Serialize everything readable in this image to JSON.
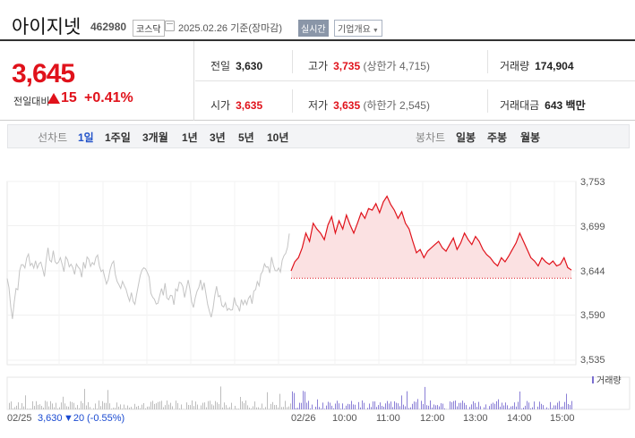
{
  "header": {
    "name": "아이지넷",
    "code": "462980",
    "market": "코스닥",
    "date": "2025.02.26 기준(장마감)",
    "realtime": "실시간",
    "corp_info": "기업개요"
  },
  "price": {
    "current": "3,645",
    "change_label": "전일대비",
    "change_value": "15",
    "change_pct": "+0.41%",
    "direction": "up"
  },
  "stats": {
    "prev_close_label": "전일",
    "prev_close": "3,630",
    "high_label": "고가",
    "high": "3,735",
    "upper_limit_label": "(상한가",
    "upper_limit": "4,715)",
    "volume_label": "거래량",
    "volume": "174,904",
    "open_label": "시가",
    "open": "3,635",
    "low_label": "저가",
    "low": "3,635",
    "lower_limit_label": "(하한가",
    "lower_limit": "2,545)",
    "trade_value_label": "거래대금",
    "trade_value": "643 백만"
  },
  "tabs": {
    "line_label": "선차트",
    "line": [
      "1일",
      "1주일",
      "3개월",
      "1년",
      "3년",
      "5년",
      "10년"
    ],
    "candle_label": "봉차트",
    "candle": [
      "일봉",
      "주봉",
      "월봉"
    ],
    "active": "1일"
  },
  "chart_data": {
    "type": "line",
    "y_ticks": [
      "3,753",
      "3,699",
      "3,644",
      "3,590",
      "3,535"
    ],
    "ylim": [
      3535,
      3753
    ],
    "x_ticks": [
      "02/26",
      "10:00",
      "11:00",
      "12:00",
      "13:00",
      "14:00",
      "15:00"
    ],
    "volume_label": "거래량",
    "prev_day_label": "02/25",
    "prev_day_close": "3,630",
    "prev_day_change": "▼20",
    "prev_day_pct": "(-0.55%)",
    "series": [
      {
        "values": [
          3644,
          3655,
          3660,
          3672,
          3690,
          3680,
          3702,
          3695,
          3690,
          3682,
          3700,
          3710,
          3690,
          3705,
          3695,
          3712,
          3700,
          3690,
          3702,
          3715,
          3708,
          3720,
          3718,
          3726,
          3715,
          3728,
          3735,
          3725,
          3718,
          3708,
          3716,
          3702,
          3695,
          3680,
          3666,
          3670,
          3660,
          3668,
          3672,
          3676,
          3680,
          3672,
          3668,
          3676,
          3684,
          3670,
          3678,
          3690,
          3682,
          3676,
          3686,
          3680,
          3670,
          3664,
          3660,
          3654,
          3650,
          3660,
          3655,
          3662,
          3670,
          3678,
          3690,
          3680,
          3670,
          3660,
          3656,
          3650,
          3660,
          3655,
          3652,
          3656,
          3650,
          3652,
          3660,
          3648,
          3645
        ]
      }
    ]
  },
  "colors": {
    "up": "#e0121b",
    "down": "#1a4ad1",
    "active_tab": "#2353c9"
  }
}
